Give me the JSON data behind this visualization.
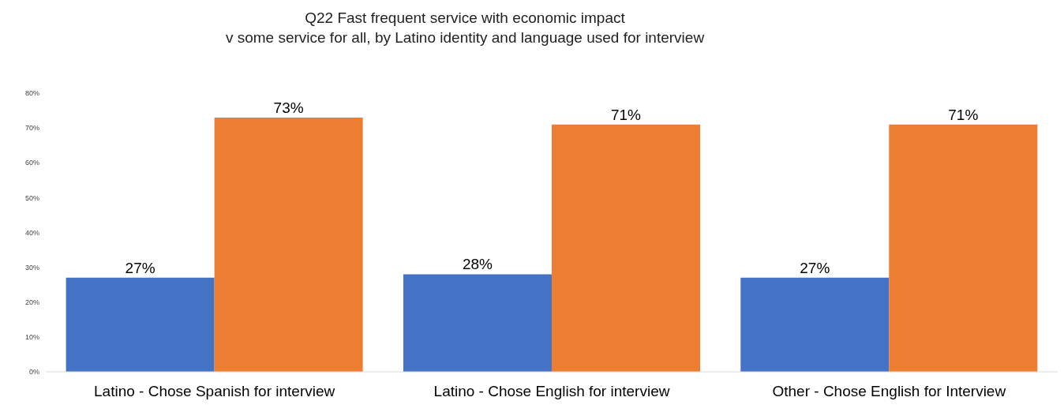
{
  "chart_data": {
    "type": "bar",
    "title": "Q22 Fast frequent service with economic impact",
    "subtitle": "v some service for all, by Latino identity and language used for interview",
    "categories": [
      "Latino - Chose Spanish for interview",
      "Latino - Chose English for interview",
      "Other - Chose English for Interview"
    ],
    "series": [
      {
        "color": "#4472c4",
        "values": [
          27,
          28,
          27
        ],
        "value_labels": [
          "27%",
          "28%",
          "27%"
        ]
      },
      {
        "color": "#ed7d31",
        "values": [
          73,
          71,
          71
        ],
        "value_labels": [
          "73%",
          "71%",
          "71%"
        ]
      }
    ],
    "ylim": [
      0,
      80
    ],
    "yticks": [
      {
        "value": 0,
        "label": "0%"
      },
      {
        "value": 10,
        "label": "10%"
      },
      {
        "value": 20,
        "label": "20%"
      },
      {
        "value": 30,
        "label": "30%"
      },
      {
        "value": 40,
        "label": "40%"
      },
      {
        "value": 50,
        "label": "50%"
      },
      {
        "value": 60,
        "label": "60%"
      },
      {
        "value": 70,
        "label": "70%"
      },
      {
        "value": 80,
        "label": "80%"
      }
    ],
    "grid": false,
    "legend": false
  }
}
